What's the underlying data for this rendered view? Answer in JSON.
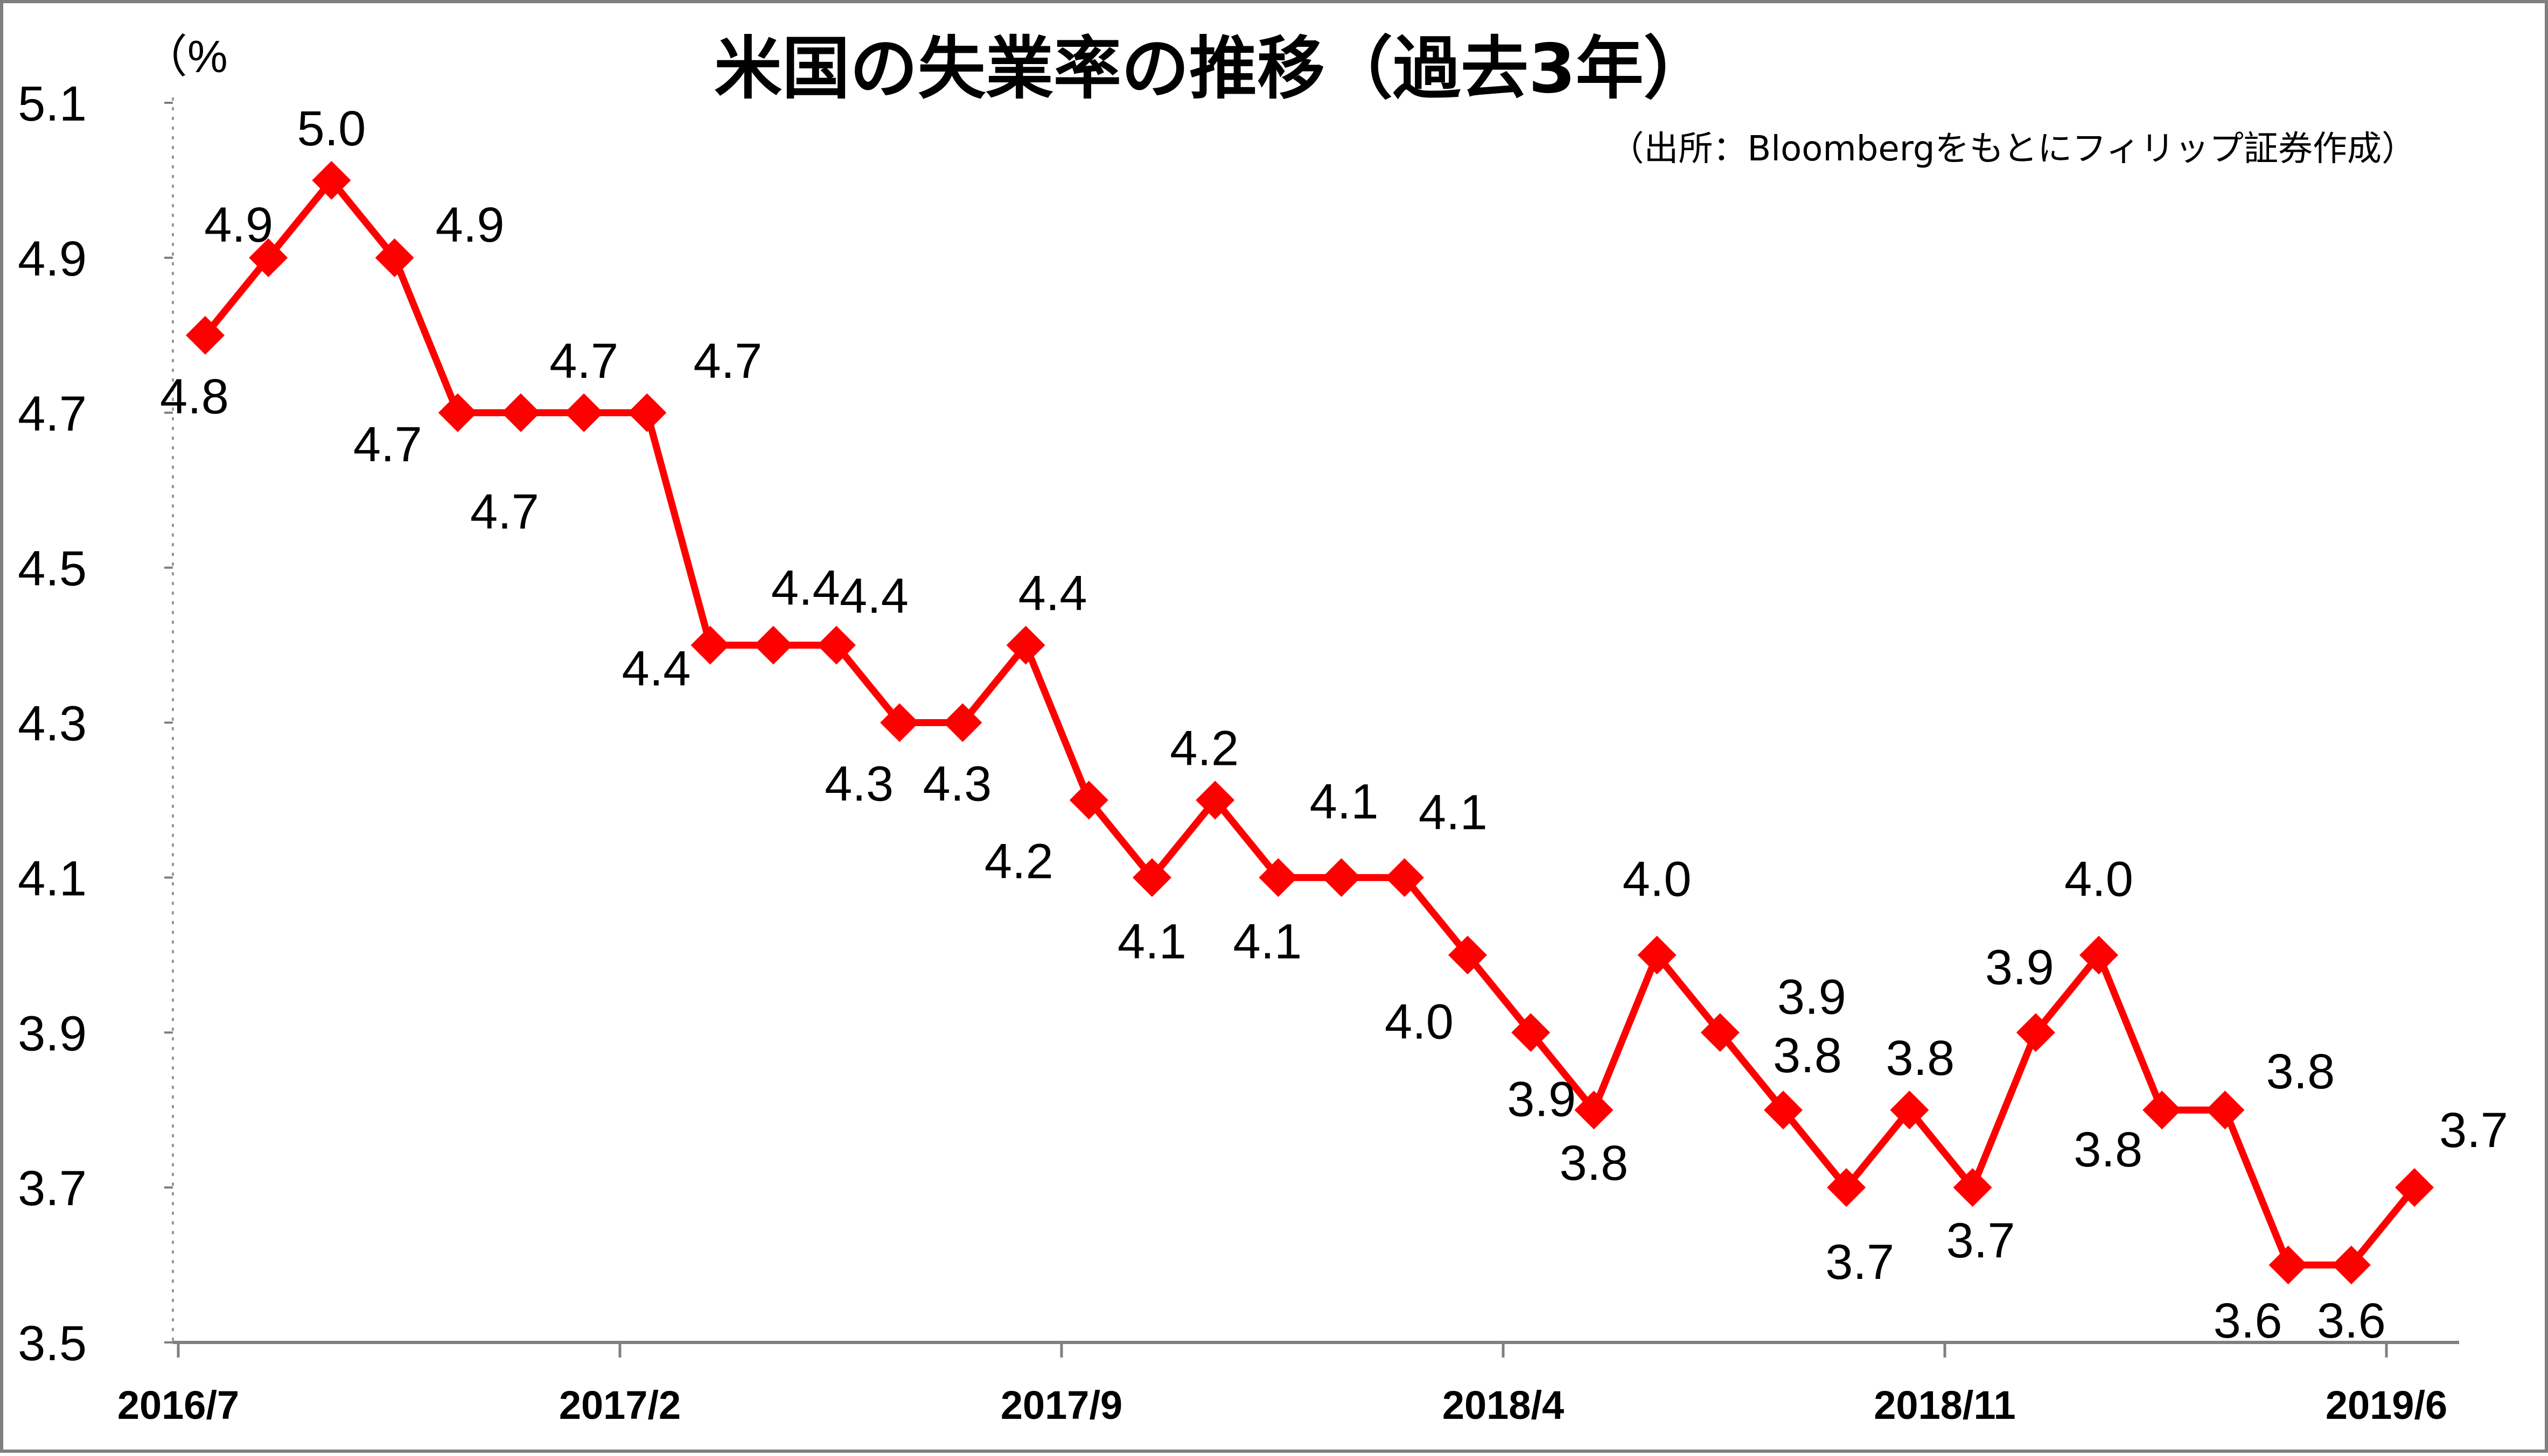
{
  "chart_data": {
    "type": "line",
    "title": "米国の失業率の推移（過去3年）",
    "source": "（出所：Bloombergをもとにフィリップ証券作成）",
    "unit_label": "（%",
    "xlabel": "",
    "ylabel": "",
    "ylim": [
      3.5,
      5.1
    ],
    "y_ticks": [
      "5.1",
      "4.9",
      "4.7",
      "4.5",
      "4.3",
      "4.1",
      "3.9",
      "3.7",
      "3.5"
    ],
    "x_tick_labels": [
      "2016/7",
      "2017/2",
      "2017/9",
      "2018/4",
      "2018/11",
      "2019/6"
    ],
    "x": [
      "2016/7",
      "2016/8",
      "2016/9",
      "2016/10",
      "2016/11",
      "2016/12",
      "2017/1",
      "2017/2",
      "2017/3",
      "2017/4",
      "2017/5",
      "2017/6",
      "2017/7",
      "2017/8",
      "2017/9",
      "2017/10",
      "2017/11",
      "2017/12",
      "2018/1",
      "2018/2",
      "2018/3",
      "2018/4",
      "2018/5",
      "2018/6",
      "2018/7",
      "2018/8",
      "2018/9",
      "2018/10",
      "2018/11",
      "2018/12",
      "2019/1",
      "2019/2",
      "2019/3",
      "2019/4",
      "2019/5",
      "2019/6"
    ],
    "series": [
      {
        "values": [
          4.8,
          4.9,
          5.0,
          4.9,
          4.7,
          4.7,
          4.7,
          4.7,
          4.4,
          4.4,
          4.4,
          4.3,
          4.3,
          4.4,
          4.2,
          4.1,
          4.2,
          4.1,
          4.1,
          4.1,
          4.0,
          3.9,
          3.8,
          4.0,
          3.9,
          3.8,
          3.7,
          3.8,
          3.7,
          3.9,
          4.0,
          3.8,
          3.8,
          3.6,
          3.6,
          3.7
        ],
        "color": "#ff0000",
        "marker": "diamond"
      }
    ],
    "data_label_text": [
      "4.8",
      "4.9",
      "5.0",
      "4.9",
      "4.7",
      "4.7",
      "4.7",
      "4.7",
      "4.4",
      "4.4",
      "4.4",
      "4.3",
      "4.3",
      "4.4",
      "4.2",
      "4.1",
      "4.2",
      "4.1",
      "4.1",
      "4.1",
      "4.0",
      "3.9",
      "3.8",
      "4.0",
      "3.9",
      "3.8",
      "3.7",
      "3.8",
      "3.7",
      "3.9",
      "4.0",
      "3.8",
      "3.8",
      "3.6",
      "3.6",
      "3.7"
    ],
    "grid": false,
    "legend": "none"
  }
}
